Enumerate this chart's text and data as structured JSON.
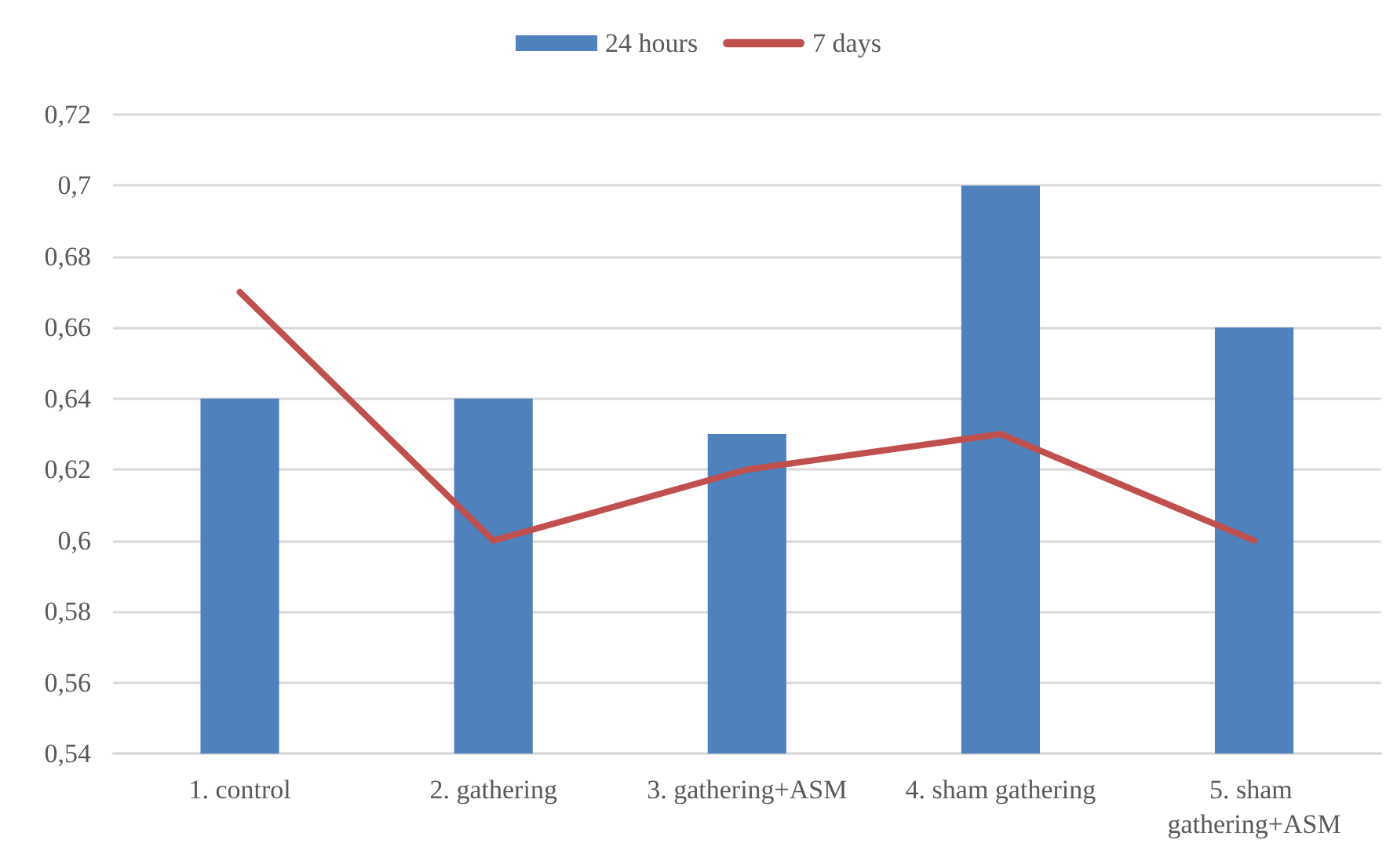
{
  "chart_data": {
    "type": "bar",
    "categories": [
      "1. control",
      "2. gathering",
      "3. gathering+ASM",
      "4. sham gathering",
      "5. sham gathering+ASM"
    ],
    "series": [
      {
        "name": "24 hours",
        "color": "#4f81bd",
        "values": [
          0.64,
          0.64,
          0.63,
          0.7,
          0.66
        ]
      },
      {
        "name": "7 days",
        "type": "line",
        "color": "#c0504d",
        "values": [
          0.67,
          0.6,
          0.62,
          0.63,
          0.6
        ]
      }
    ],
    "ylim": [
      0.54,
      0.72
    ],
    "yticks": [
      {
        "value": 0.54,
        "label": "0,54"
      },
      {
        "value": 0.56,
        "label": "0,56"
      },
      {
        "value": 0.58,
        "label": "0,58"
      },
      {
        "value": 0.6,
        "label": "0,6"
      },
      {
        "value": 0.62,
        "label": "0,62"
      },
      {
        "value": 0.64,
        "label": "0,64"
      },
      {
        "value": 0.66,
        "label": "0,66"
      },
      {
        "value": 0.68,
        "label": "0,68"
      },
      {
        "value": 0.7,
        "label": "0,7"
      },
      {
        "value": 0.72,
        "label": "0,72"
      }
    ],
    "grid": "y",
    "legend": "top",
    "marker": "none",
    "line_style": "solid"
  }
}
